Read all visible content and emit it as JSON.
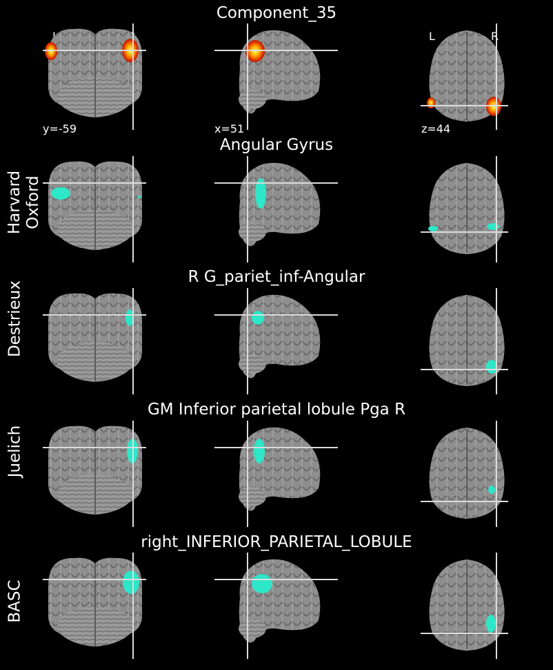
{
  "main_title": "Component_35",
  "orientation_labels": {
    "left": "L",
    "right": "R"
  },
  "coordinates": {
    "coronal": "y=-59",
    "sagittal": "x=51",
    "axial": "z=44"
  },
  "rows": [
    {
      "atlas": "",
      "region": "Component_35",
      "overlay_color": "#ff8c00"
    },
    {
      "atlas": "Harvard\nOxford",
      "region": "Angular Gyrus",
      "overlay_color": "#2ee6c8"
    },
    {
      "atlas": "Destrieux",
      "region": "R G_pariet_inf-Angular",
      "overlay_color": "#2ee6c8"
    },
    {
      "atlas": "Juelich",
      "region": "GM Inferior parietal lobule Pga R",
      "overlay_color": "#2ee6c8"
    },
    {
      "atlas": "BASC",
      "region": "right_INFERIOR_PARIETAL_LOBULE",
      "overlay_color": "#2ee6c8"
    }
  ]
}
